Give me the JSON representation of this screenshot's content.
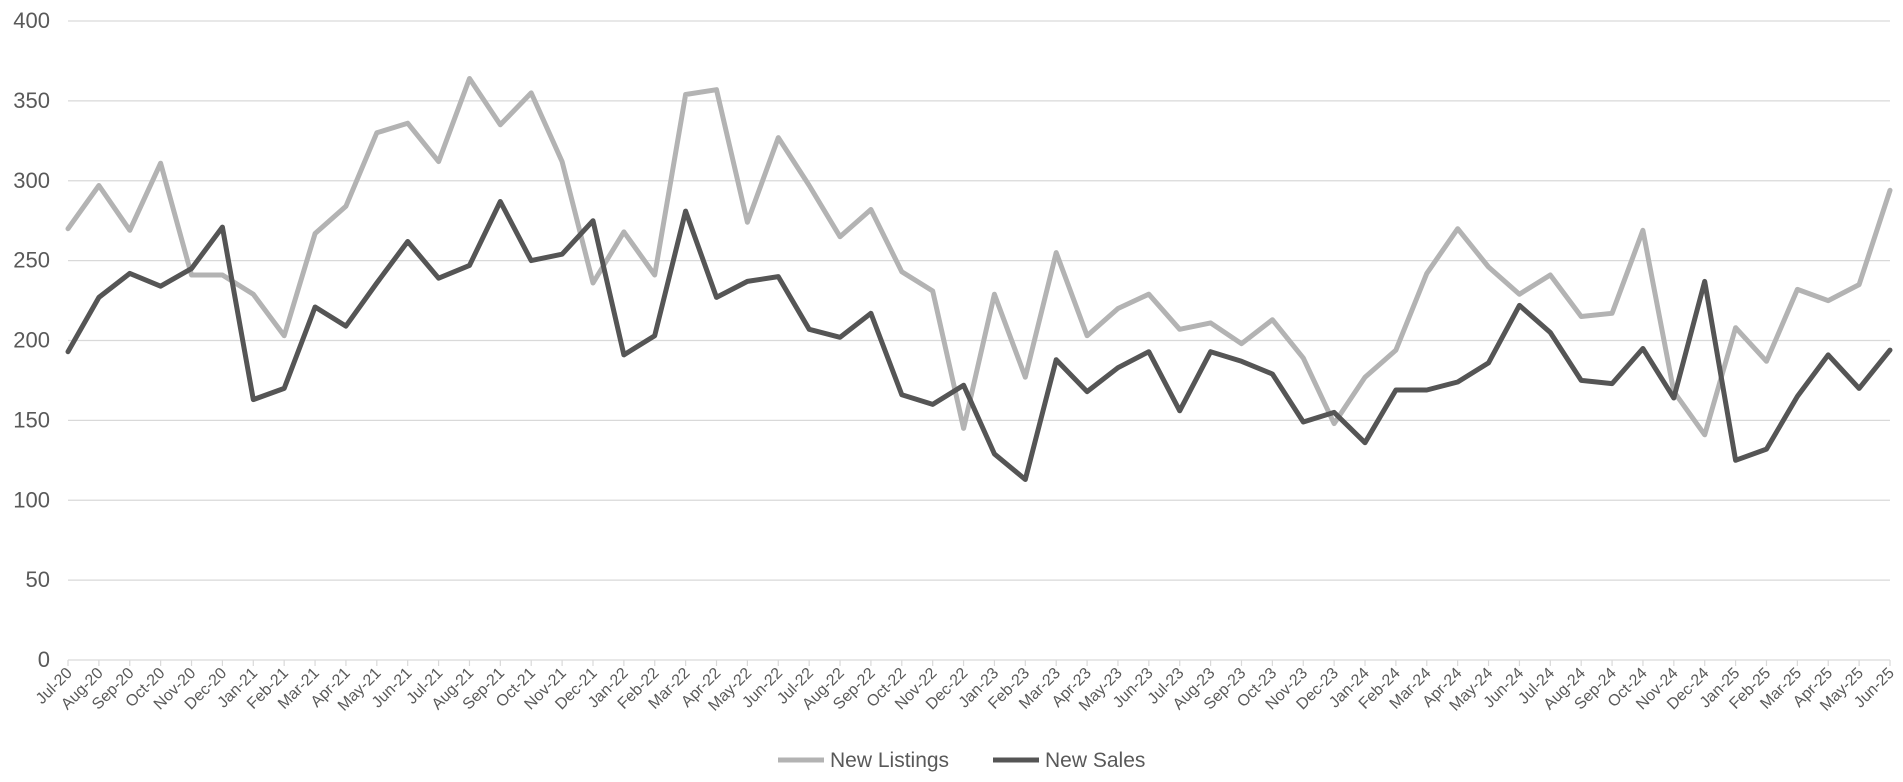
{
  "chart_data": {
    "type": "line",
    "title": "",
    "xlabel": "",
    "ylabel": "",
    "ylim": [
      0,
      400
    ],
    "yticks": [
      0,
      50,
      100,
      150,
      200,
      250,
      300,
      350,
      400
    ],
    "grid": "horizontal",
    "legend_position": "bottom",
    "categories": [
      "Jul-20",
      "Aug-20",
      "Sep-20",
      "Oct-20",
      "Nov-20",
      "Dec-20",
      "Jan-21",
      "Feb-21",
      "Mar-21",
      "Apr-21",
      "May-21",
      "Jun-21",
      "Jul-21",
      "Aug-21",
      "Sep-21",
      "Oct-21",
      "Nov-21",
      "Dec-21",
      "Jan-22",
      "Feb-22",
      "Mar-22",
      "Apr-22",
      "May-22",
      "Jun-22",
      "Jul-22",
      "Aug-22",
      "Sep-22",
      "Oct-22",
      "Nov-22",
      "Dec-22",
      "Jan-23",
      "Feb-23",
      "Mar-23",
      "Apr-23",
      "May-23",
      "Jun-23",
      "Jul-23",
      "Aug-23",
      "Sep-23",
      "Oct-23",
      "Nov-23",
      "Dec-23",
      "Jan-24",
      "Feb-24",
      "Mar-24",
      "Apr-24",
      "May-24",
      "Jun-24",
      "Jul-24",
      "Aug-24",
      "Sep-24",
      "Oct-24",
      "Nov-24",
      "Dec-24",
      "Jan-25",
      "Feb-25",
      "Mar-25",
      "Apr-25",
      "May-25",
      "Jun-25"
    ],
    "series": [
      {
        "name": "New Listings",
        "color": "#b3b3b3",
        "values": [
          270,
          297,
          269,
          311,
          241,
          241,
          229,
          203,
          267,
          284,
          330,
          336,
          312,
          364,
          335,
          355,
          312,
          236,
          268,
          241,
          354,
          357,
          274,
          327,
          297,
          265,
          282,
          243,
          231,
          145,
          229,
          177,
          255,
          203,
          220,
          229,
          207,
          211,
          198,
          213,
          189,
          148,
          177,
          194,
          242,
          270,
          246,
          229,
          241,
          215,
          217,
          269,
          168,
          141,
          208,
          187,
          232,
          225,
          235,
          294
        ]
      },
      {
        "name": "New Sales",
        "color": "#555555",
        "values": [
          193,
          227,
          242,
          234,
          245,
          271,
          163,
          170,
          221,
          209,
          236,
          262,
          239,
          247,
          287,
          250,
          254,
          275,
          191,
          203,
          281,
          227,
          237,
          240,
          207,
          202,
          217,
          166,
          160,
          172,
          129,
          113,
          188,
          168,
          183,
          193,
          156,
          193,
          187,
          179,
          149,
          155,
          136,
          169,
          169,
          174,
          186,
          222,
          205,
          175,
          173,
          195,
          164,
          237,
          125,
          132,
          165,
          191,
          170,
          194
        ]
      }
    ]
  }
}
